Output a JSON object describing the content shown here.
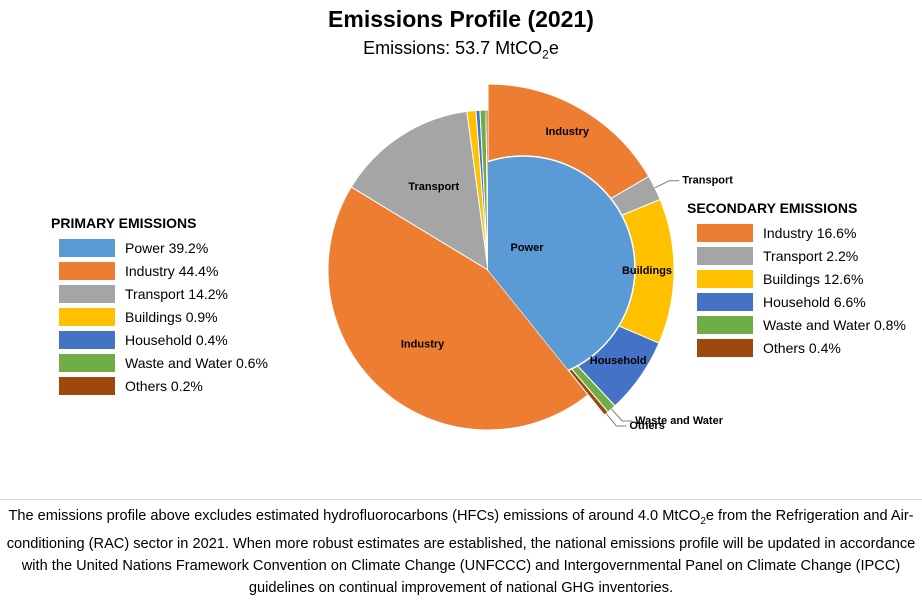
{
  "chart_data": {
    "type": "pie",
    "title": "Emissions Profile (2021)",
    "subtitle": {
      "prefix": "Emissions: 53.7 MtCO",
      "sub": "2",
      "suffix": "e"
    },
    "primary": {
      "legend_title": "PRIMARY EMISSIONS",
      "slices": [
        {
          "label": "Power",
          "value": 39.2,
          "legend": "Power 39.2%",
          "color": "#5b9bd5"
        },
        {
          "label": "Industry",
          "value": 44.4,
          "legend": "Industry 44.4%",
          "color": "#ed7d31"
        },
        {
          "label": "Transport",
          "value": 14.2,
          "legend": "Transport 14.2%",
          "color": "#a5a5a5"
        },
        {
          "label": "",
          "value": 0.9,
          "legend": "Buildings 0.9%",
          "color": "#ffc000"
        },
        {
          "label": "",
          "value": 0.4,
          "legend": "Household 0.4%",
          "color": "#4472c4"
        },
        {
          "label": "",
          "value": 0.6,
          "legend": "Waste and Water 0.6%",
          "color": "#70ad47"
        },
        {
          "label": "",
          "value": 0.2,
          "legend": "Others 0.2%",
          "color": "#9e480e"
        }
      ]
    },
    "secondary": {
      "legend_title": "SECONDARY EMISSIONS",
      "slices": [
        {
          "label": "Industry",
          "value": 16.6,
          "legend": "Industry 16.6%",
          "color": "#ed7d31"
        },
        {
          "label": "Transport",
          "value": 2.2,
          "legend": "Transport 2.2%",
          "color": "#a5a5a5"
        },
        {
          "label": "Buildings",
          "value": 12.6,
          "legend": "Buildings 12.6%",
          "color": "#ffc000"
        },
        {
          "label": "Household",
          "value": 6.6,
          "legend": "Household 6.6%",
          "color": "#4472c4"
        },
        {
          "label": "Waste and Water",
          "value": 0.8,
          "legend": "Waste and Water 0.8%",
          "color": "#70ad47"
        },
        {
          "label": "Others",
          "value": 0.4,
          "legend": "Others 0.4%",
          "color": "#9e480e"
        }
      ]
    }
  },
  "footnote": {
    "part1": "The emissions profile above excludes estimated hydrofluorocarbons (HFCs) emissions of around 4.0 MtCO",
    "sub": "2",
    "part2": "e from the Refrigeration and Air-conditioning (RAC) sector in 2021. When more robust estimates are established, the national emissions profile will be updated in accordance with the United Nations Framework Convention on Climate Change (UNFCCC) and Intergovernmental Panel on Climate Change (IPCC) guidelines on continual improvement of national GHG inventories."
  }
}
